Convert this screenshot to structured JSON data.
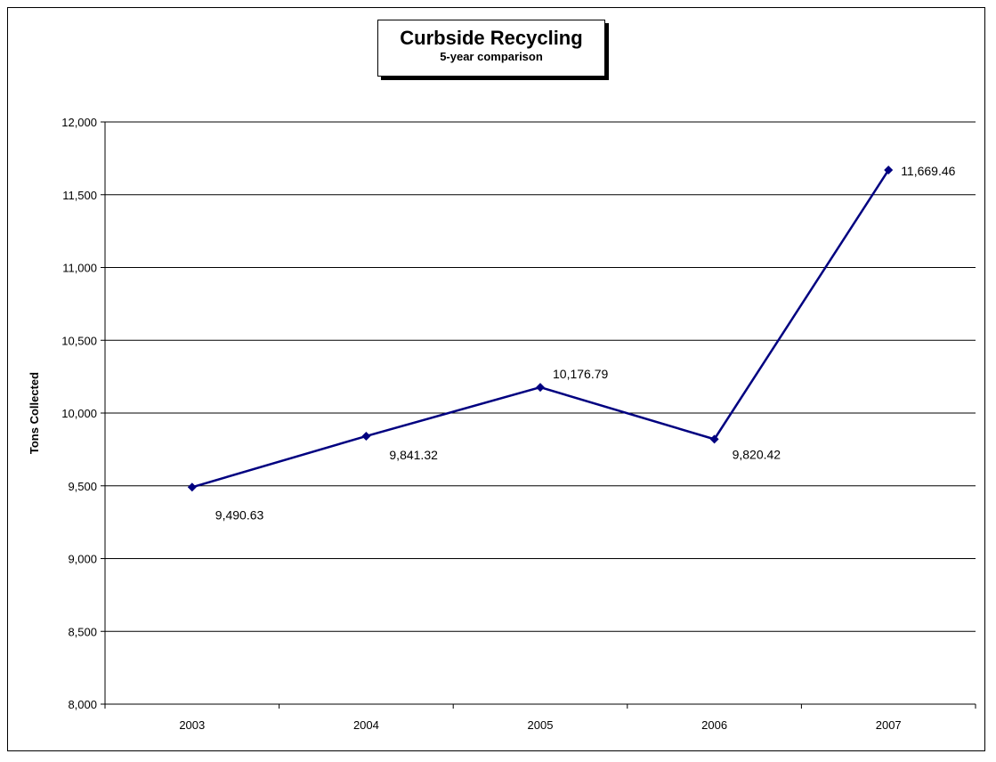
{
  "chart_data": {
    "type": "line",
    "title": "Curbside Recycling",
    "subtitle": "5-year comparison",
    "ylabel": "Tons Collected",
    "xlabel": "",
    "categories": [
      "2003",
      "2004",
      "2005",
      "2006",
      "2007"
    ],
    "y_tick_labels": [
      "8,000",
      "8,500",
      "9,000",
      "9,500",
      "10,000",
      "10,500",
      "11,000",
      "11,500",
      "12,000"
    ],
    "y_tick_values": [
      8000,
      8500,
      9000,
      9500,
      10000,
      10500,
      11000,
      11500,
      12000
    ],
    "ylim": [
      8000,
      12000
    ],
    "grid": "horizontal",
    "legend": "none",
    "series": [
      {
        "values": [
          9490.63,
          9841.32,
          10176.79,
          9820.42,
          11669.46
        ],
        "data_labels": [
          "9,490.63",
          "9,841.32",
          "10,176.79",
          "9,820.42",
          "11,669.46"
        ],
        "color": "#000080",
        "marker": "diamond"
      }
    ]
  }
}
